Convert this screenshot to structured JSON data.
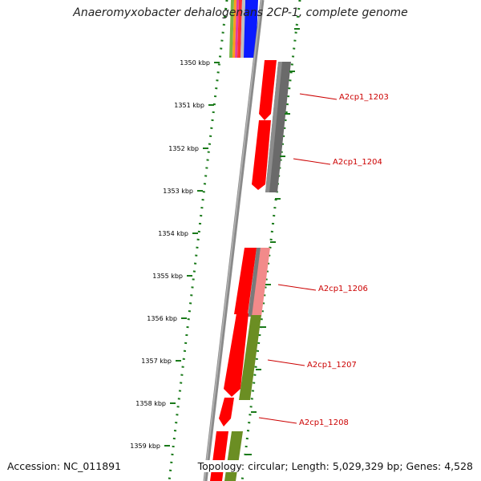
{
  "title": "Anaeromyxobacter dehalogenans 2CP-1, complete genome",
  "footer": {
    "accession": "Accession: NC_011891",
    "summary": "Topology: circular; Length: 5,029,329 bp; Genes: 4,528"
  },
  "ticks": [
    {
      "label": "1350 kbp"
    },
    {
      "label": "1351 kbp"
    },
    {
      "label": "1352 kbp"
    },
    {
      "label": "1353 kbp"
    },
    {
      "label": "1354 kbp"
    },
    {
      "label": "1355 kbp"
    },
    {
      "label": "1356 kbp"
    },
    {
      "label": "1357 kbp"
    },
    {
      "label": "1358 kbp"
    },
    {
      "label": "1359 kbp"
    }
  ],
  "gene_labels": [
    {
      "label": "A2cp1_1203"
    },
    {
      "label": "A2cp1_1204"
    },
    {
      "label": "A2cp1_1206"
    },
    {
      "label": "A2cp1_1207"
    },
    {
      "label": "A2cp1_1208"
    }
  ],
  "colors": {
    "cds": "#ff0000",
    "gene": "#6a6a6a",
    "cds_light": "#f28a8a",
    "green_feature": "#6b8e23",
    "backbone": "#8a8a8a",
    "tick": "#1a7a1a",
    "label": "#cc0000"
  }
}
